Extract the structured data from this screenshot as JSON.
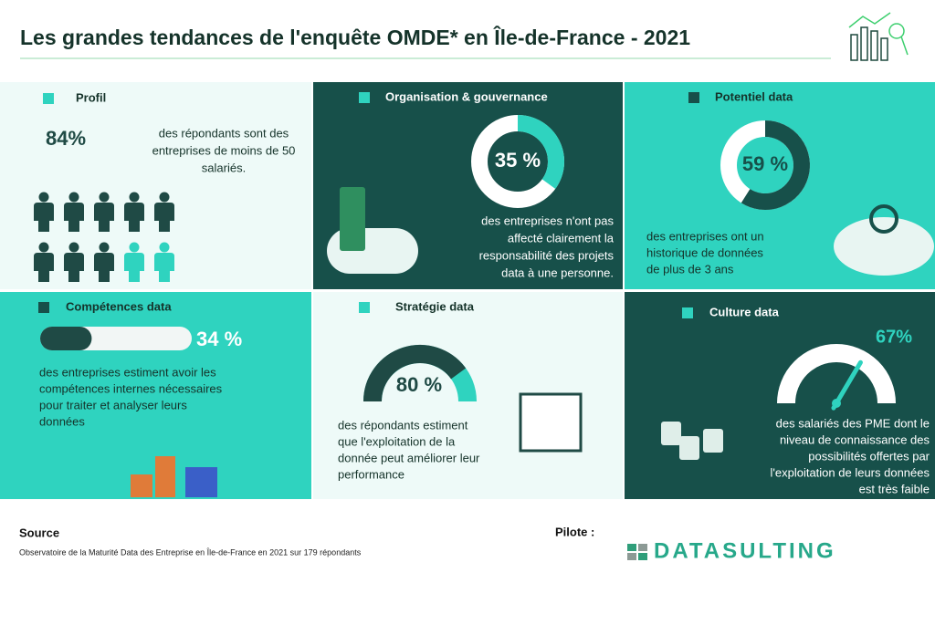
{
  "header": {
    "title": "Les grandes tendances de l'enquête OMDE* en Île-de-France - 2021"
  },
  "panels": [
    {
      "title": "Profil",
      "value": 84,
      "value_label": "84%",
      "text": [
        "des répondants sont des",
        "entreprises de moins de 50",
        "salariés."
      ]
    },
    {
      "title": "Organisation & gouvernance",
      "value": 35,
      "value_label": "35 %",
      "text": [
        "des entreprises n'ont pas",
        "affecté clairement la",
        "responsabilité des projets",
        "data à une personne."
      ]
    },
    {
      "title": "Potentiel data",
      "value": 59,
      "value_label": "59 %",
      "text": [
        "des entreprises ont un",
        "historique de données",
        "de plus de 3 ans"
      ]
    },
    {
      "title": "Compétences data",
      "value": 34,
      "value_label": "34 %",
      "text": [
        "des entreprises estiment avoir les",
        "compétences internes nécessaires",
        "pour traiter et analyser leurs",
        "données"
      ]
    },
    {
      "title": "Stratégie data",
      "value": 80,
      "value_label": "80 %",
      "text": [
        "des répondants estiment",
        "que l'exploitation de la",
        "donnée peut améliorer leur",
        "performance"
      ]
    },
    {
      "title": "Culture data",
      "value": 67,
      "value_label": "67%",
      "text": [
        "des salariés des PME dont le",
        "niveau de connaissance des",
        "possibilités offertes par",
        "l'exploitation de leurs données",
        "est très faible"
      ]
    }
  ],
  "footer": {
    "source_title": "Source",
    "source_text": "Observatoire de la Maturité Data des Entreprise en Île-de-France en 2021 sur 179 répondants",
    "pilot_label": "Pilote :",
    "logo": "DATASULTING"
  }
}
